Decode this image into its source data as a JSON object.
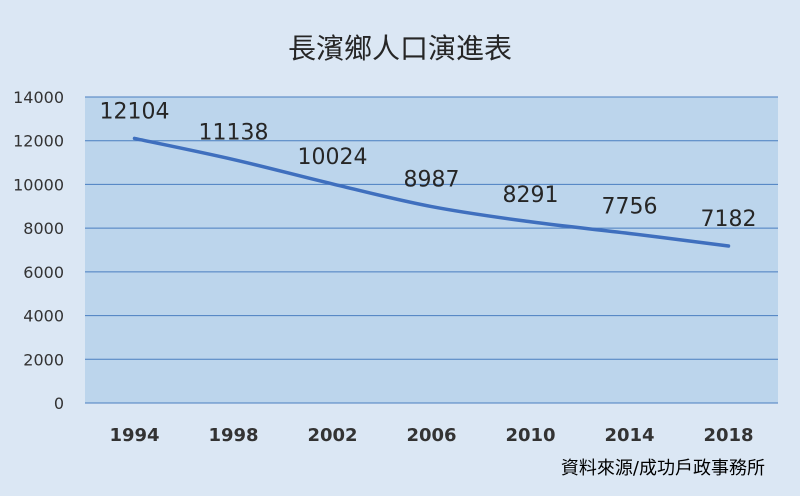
{
  "chart_data": {
    "type": "line",
    "title": "長濱鄉人口演進表",
    "source": "資料來源/成功戶政事務所",
    "categories": [
      "1994",
      "1998",
      "2002",
      "2006",
      "2010",
      "2014",
      "2018"
    ],
    "series": [
      {
        "values": [
          12104,
          11138,
          10024,
          8987,
          8291,
          7756,
          7182
        ]
      }
    ],
    "data_labels": [
      "12104",
      "11138",
      "10024",
      "8987",
      "8291",
      "7756",
      "7182"
    ],
    "y_ticks": [
      "0",
      "2000",
      "4000",
      "6000",
      "8000",
      "10000",
      "12000",
      "14000"
    ],
    "ylim": [
      0,
      14000
    ],
    "grid": true,
    "legend": false,
    "colors": {
      "background": "#dbe7f4",
      "plot_area": "#bcd5ec",
      "grid": "#4a7ec0",
      "line": "#3f6fbe",
      "text": "#262626",
      "tick_text": "#333333"
    }
  }
}
